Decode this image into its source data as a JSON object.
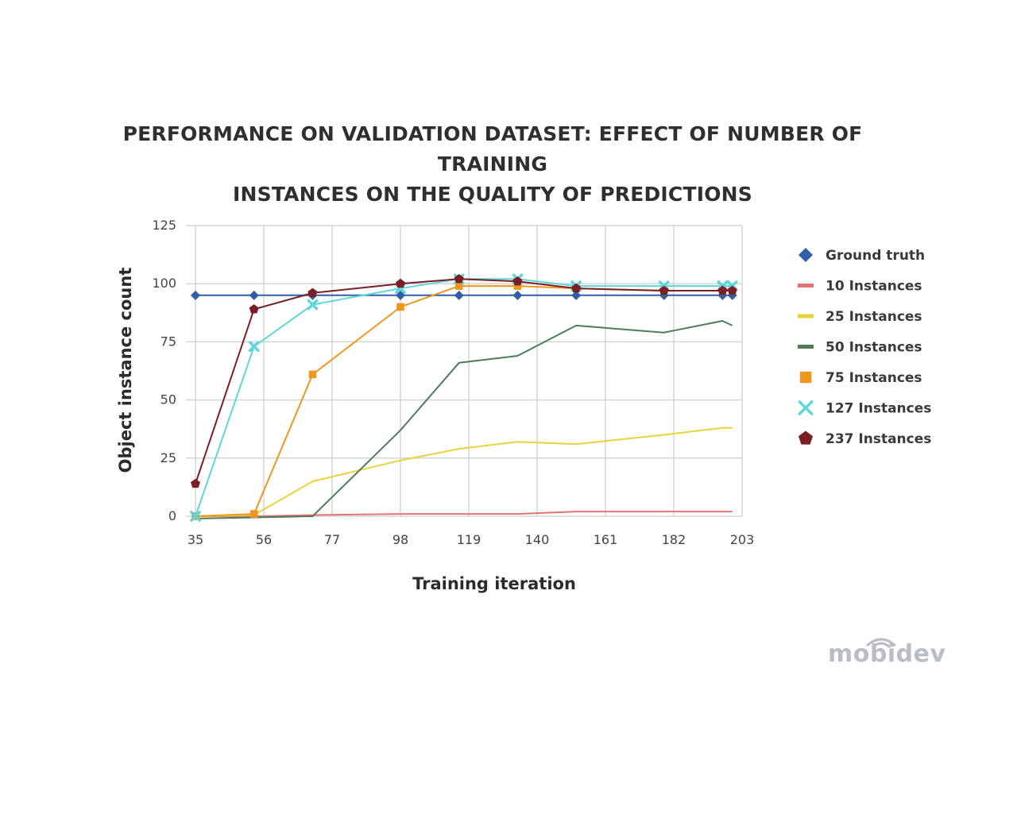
{
  "chart_data": {
    "type": "line",
    "title": [
      "PERFORMANCE ON VALIDATION DATASET: EFFECT OF NUMBER OF TRAINING",
      "INSTANCES ON THE QUALITY OF PREDICTIONS"
    ],
    "xlabel": "Training iteration",
    "ylabel": "Object instance count",
    "xlim": [
      35,
      203
    ],
    "ylim": [
      0,
      125
    ],
    "xticks": [
      "35",
      "56",
      "77",
      "98",
      "119",
      "140",
      "161",
      "182",
      "203"
    ],
    "yticks": [
      "0",
      "25",
      "50",
      "75",
      "100",
      "125"
    ],
    "grid": true,
    "legend_position": "right",
    "series": [
      {
        "name": "Ground truth",
        "color": "#2e5fa8",
        "marker": "diamond",
        "x": [
          35,
          53,
          71,
          98,
          116,
          134,
          152,
          179,
          197,
          200
        ],
        "y": [
          95,
          95,
          95,
          95,
          95,
          95,
          95,
          95,
          95,
          95
        ]
      },
      {
        "name": "10 Instances",
        "color": "#e57373",
        "marker": "none",
        "x": [
          35,
          53,
          71,
          98,
          116,
          134,
          152,
          179,
          197,
          200
        ],
        "y": [
          0,
          0,
          0.5,
          1,
          1,
          1,
          2,
          2,
          2,
          2
        ]
      },
      {
        "name": "25 Instances",
        "color": "#e8d33a",
        "marker": "none",
        "x": [
          35,
          53,
          71,
          98,
          116,
          134,
          152,
          179,
          197,
          200
        ],
        "y": [
          0,
          0.5,
          15,
          24,
          29,
          32,
          31,
          35,
          38,
          38
        ]
      },
      {
        "name": "50 Instances",
        "color": "#4c7d57",
        "marker": "none",
        "x": [
          35,
          53,
          71,
          98,
          116,
          134,
          152,
          179,
          197,
          200
        ],
        "y": [
          -1,
          -0.5,
          0,
          37,
          66,
          69,
          82,
          79,
          84,
          82
        ]
      },
      {
        "name": "75 Instances",
        "color": "#f0961d",
        "marker": "square",
        "x": [
          35,
          53,
          71,
          98,
          116,
          134,
          152,
          179,
          197,
          200
        ],
        "y": [
          0,
          1,
          61,
          90,
          99,
          99,
          98,
          97,
          97,
          97
        ]
      },
      {
        "name": "127 Instances",
        "color": "#5ed6db",
        "marker": "cross",
        "x": [
          35,
          53,
          71,
          98,
          116,
          134,
          152,
          179,
          197,
          200
        ],
        "y": [
          0,
          73,
          91,
          98,
          102,
          102,
          99,
          99,
          99,
          99
        ]
      },
      {
        "name": "237 Instances",
        "color": "#7a1f24",
        "marker": "pentagon",
        "x": [
          35,
          53,
          71,
          98,
          116,
          134,
          152,
          179,
          197,
          200
        ],
        "y": [
          14,
          89,
          96,
          100,
          102,
          101,
          98,
          97,
          97,
          97
        ]
      }
    ]
  },
  "brand": {
    "name": "mobidev",
    "color": "#b9bec6"
  }
}
